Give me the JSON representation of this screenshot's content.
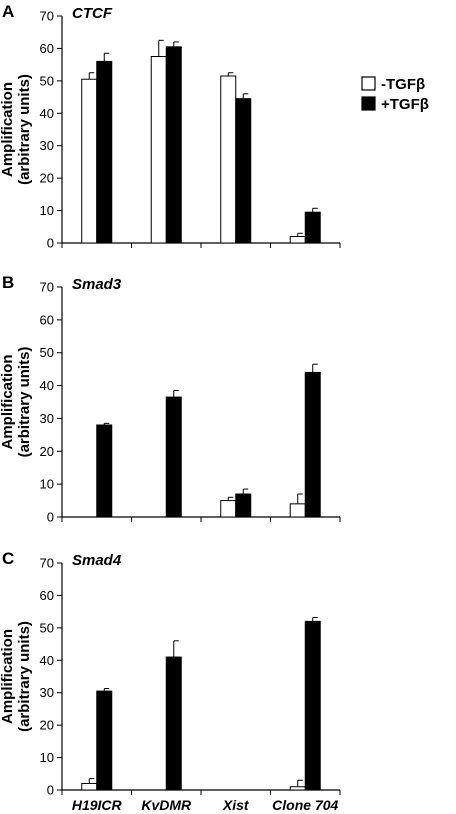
{
  "legend": {
    "items": [
      {
        "label": "-TGFβ",
        "color": "#ffffff"
      },
      {
        "label": "+TGFβ",
        "color": "#000000"
      }
    ]
  },
  "chart_data": [
    {
      "type": "bar",
      "panel": "A",
      "title": "CTCF",
      "ylabel_line1": "Amplification",
      "ylabel_line2": "(arbitrary units)",
      "ylim": [
        0,
        70
      ],
      "yticks": [
        0,
        10,
        20,
        30,
        40,
        50,
        60,
        70
      ],
      "categories": [
        "H19ICR",
        "KvDMR",
        "Xist",
        "Clone 704"
      ],
      "show_categories": false,
      "series": [
        {
          "name": "-TGFβ",
          "values": [
            50.5,
            57.5,
            51.5,
            2
          ],
          "errors": [
            2,
            5,
            1,
            1
          ]
        },
        {
          "name": "+TGFβ",
          "values": [
            56,
            60.5,
            44.5,
            9.5
          ],
          "errors": [
            2.5,
            1.5,
            1.5,
            1.2
          ]
        }
      ]
    },
    {
      "type": "bar",
      "panel": "B",
      "title": "Smad3",
      "ylabel_line1": "Amplification",
      "ylabel_line2": "(arbitrary units)",
      "ylim": [
        0,
        70
      ],
      "yticks": [
        0,
        10,
        20,
        30,
        40,
        50,
        60,
        70
      ],
      "categories": [
        "H19ICR",
        "KvDMR",
        "Xist",
        "Clone 704"
      ],
      "show_categories": false,
      "series": [
        {
          "name": "-TGFβ",
          "values": [
            0,
            0,
            5,
            4
          ],
          "errors": [
            0,
            0,
            1,
            3
          ]
        },
        {
          "name": "+TGFβ",
          "values": [
            28,
            36.5,
            7,
            44
          ],
          "errors": [
            0.5,
            2,
            1.5,
            2.5
          ]
        }
      ]
    },
    {
      "type": "bar",
      "panel": "C",
      "title": "Smad4",
      "ylabel_line1": "Amplification",
      "ylabel_line2": "(arbitrary units)",
      "ylim": [
        0,
        70
      ],
      "yticks": [
        0,
        10,
        20,
        30,
        40,
        50,
        60,
        70
      ],
      "categories": [
        "H19ICR",
        "KvDMR",
        "Xist",
        "Clone 704"
      ],
      "show_categories": true,
      "series": [
        {
          "name": "-TGFβ",
          "values": [
            2,
            0,
            0,
            1
          ],
          "errors": [
            1.5,
            0,
            0,
            2
          ]
        },
        {
          "name": "+TGFβ",
          "values": [
            30.5,
            41,
            0,
            52
          ],
          "errors": [
            0.8,
            5,
            0,
            1.2
          ]
        }
      ]
    }
  ]
}
